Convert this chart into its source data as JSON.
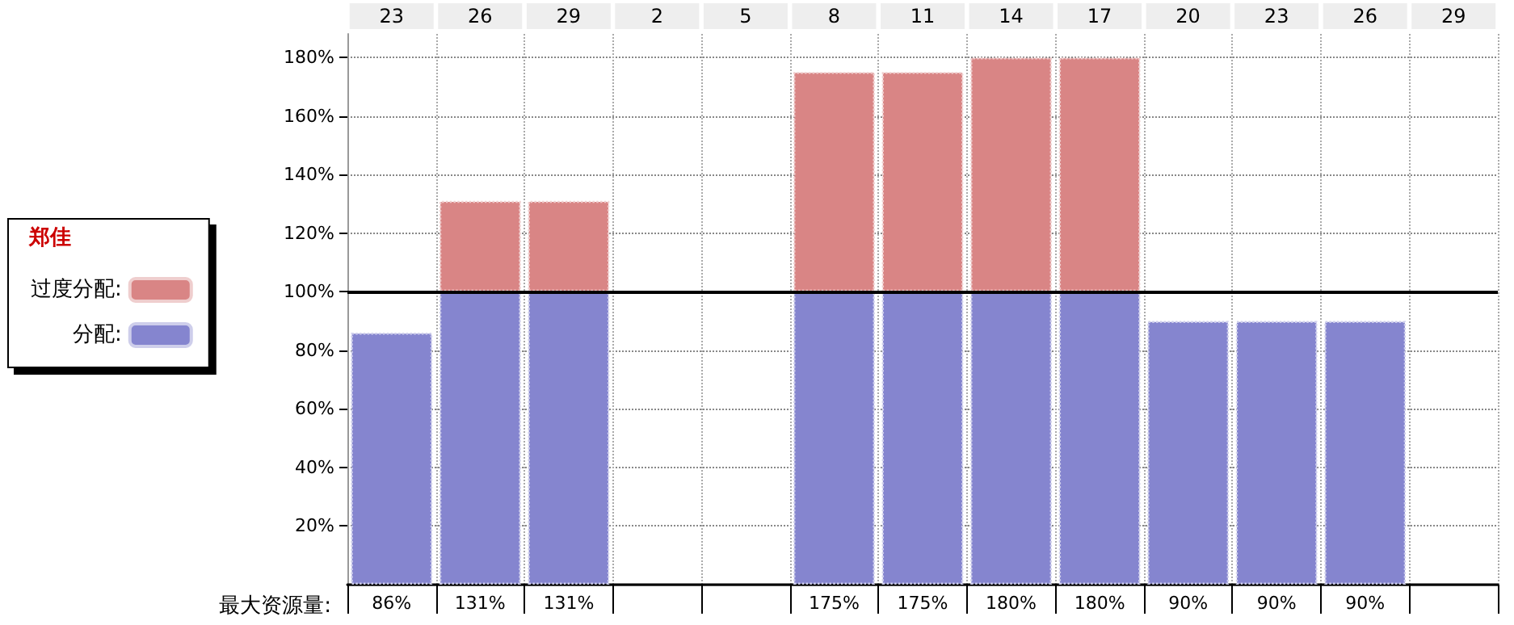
{
  "chart_data": {
    "type": "bar",
    "stacked": true,
    "legend_title": "郑佳",
    "legend": "left",
    "grid": true,
    "categories": [
      "23",
      "26",
      "29",
      "2",
      "5",
      "8",
      "11",
      "14",
      "17",
      "20",
      "23",
      "26",
      "29"
    ],
    "series": [
      {
        "name": "分配:",
        "color": "#8585cf",
        "values": [
          86,
          100,
          100,
          null,
          null,
          100,
          100,
          100,
          100,
          90,
          90,
          90,
          null
        ]
      },
      {
        "name": "过度分配:",
        "color": "#d98585",
        "values": [
          null,
          31,
          31,
          null,
          null,
          75,
          75,
          80,
          80,
          null,
          null,
          null,
          null
        ]
      }
    ],
    "totals": [
      "86%",
      "131%",
      "131%",
      null,
      null,
      "175%",
      "175%",
      "180%",
      "180%",
      "90%",
      "90%",
      "90%",
      null
    ],
    "annotations": [
      "最大资源量:"
    ],
    "ylim": [
      0,
      188
    ],
    "yticks": [
      {
        "value": 20,
        "label": "20%"
      },
      {
        "value": 40,
        "label": "40%"
      },
      {
        "value": 60,
        "label": "60%"
      },
      {
        "value": 80,
        "label": "80%"
      },
      {
        "value": 100,
        "label": "100%"
      },
      {
        "value": 120,
        "label": "120%"
      },
      {
        "value": 140,
        "label": "140%"
      },
      {
        "value": 160,
        "label": "160%"
      },
      {
        "value": 180,
        "label": "180%"
      }
    ],
    "ref_lines": [
      {
        "axis": "y",
        "value": 100,
        "color": "#000000"
      }
    ]
  }
}
